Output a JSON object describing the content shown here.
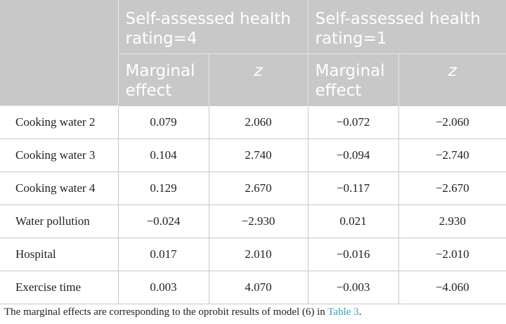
{
  "table": {
    "groups": [
      "Self-assessed health rating=4",
      "Self-assessed health rating=1"
    ],
    "subheaders": [
      "Marginal effect",
      "z",
      "Marginal effect",
      "z"
    ],
    "rows": [
      {
        "label": "Cooking water 2",
        "values": [
          "0.079",
          "2.060",
          "−0.072",
          "−2.060"
        ]
      },
      {
        "label": "Cooking water 3",
        "values": [
          "0.104",
          "2.740",
          "−0.094",
          "−2.740"
        ]
      },
      {
        "label": "Cooking water 4",
        "values": [
          "0.129",
          "2.670",
          "−0.117",
          "−2.670"
        ]
      },
      {
        "label": "Water pollution",
        "values": [
          "−0.024",
          "−2.930",
          "0.021",
          "2.930"
        ]
      },
      {
        "label": "Hospital",
        "values": [
          "0.017",
          "2.010",
          "−0.016",
          "−2.010"
        ]
      },
      {
        "label": "Exercise time",
        "values": [
          "0.003",
          "4.070",
          "−0.003",
          "−4.060"
        ]
      }
    ]
  },
  "footnote": {
    "text": "The marginal effects are corresponding to the oprobit results of model (6) in ",
    "link": "Table 3",
    "end": "."
  }
}
